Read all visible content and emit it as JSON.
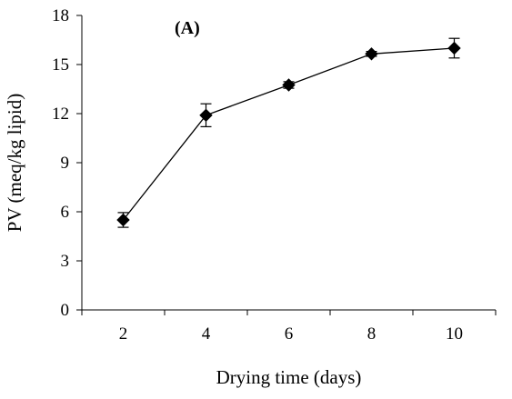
{
  "chart_data": {
    "type": "line",
    "title": "",
    "panel_label": "(A)",
    "xlabel": "Drying time (days)",
    "ylabel": "PV (meq/kg lipid)",
    "categories": [
      "2",
      "4",
      "6",
      "8",
      "10"
    ],
    "ylim": [
      0,
      18
    ],
    "yticks": [
      "0",
      "3",
      "6",
      "9",
      "12",
      "15",
      "18"
    ],
    "grid": false,
    "legend": "none",
    "series": [
      {
        "marker": "diamond",
        "color": "#000000",
        "values": [
          5.5,
          11.9,
          13.75,
          15.65,
          16.0
        ],
        "errors": [
          0.45,
          0.7,
          0.2,
          0.15,
          0.6
        ]
      }
    ]
  }
}
